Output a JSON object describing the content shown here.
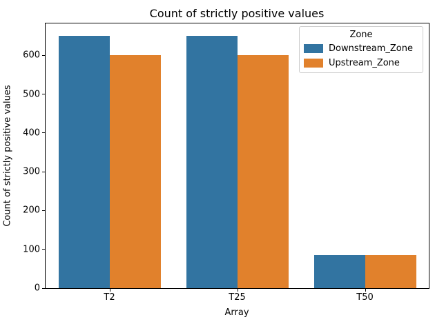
{
  "chart_data": {
    "type": "bar",
    "title": "Count of strictly positive values",
    "xlabel": "Array",
    "ylabel": "Count of strictly positive values",
    "categories": [
      "T2",
      "T25",
      "T50"
    ],
    "series": [
      {
        "name": "Downstream_Zone",
        "color": "#3274a1",
        "values": [
          650,
          650,
          85
        ]
      },
      {
        "name": "Upstream_Zone",
        "color": "#e1812c",
        "values": [
          600,
          600,
          85
        ]
      }
    ],
    "legend_title": "Zone",
    "legend_position": "upper right",
    "ylim": [
      0,
      682.5
    ],
    "yticks": [
      0,
      100,
      200,
      300,
      400,
      500,
      600
    ],
    "grid": false
  }
}
